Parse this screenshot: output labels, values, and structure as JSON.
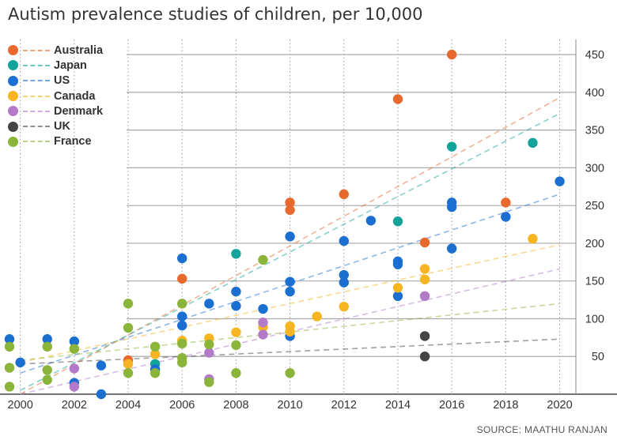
{
  "title": "Autism prevalence studies of children, per 10,000",
  "source": "SOURCE: MAATHU RANJAN",
  "chart_data": {
    "type": "scatter",
    "title": "Autism prevalence studies of children, per 10,000",
    "xlabel": "",
    "ylabel": "",
    "xlim": [
      1999.6,
      2020.6
    ],
    "ylim": [
      0,
      470
    ],
    "x_ticks": [
      2000,
      2002,
      2004,
      2006,
      2008,
      2010,
      2012,
      2014,
      2016,
      2018,
      2020
    ],
    "y_ticks": [
      50,
      100,
      150,
      200,
      250,
      300,
      350,
      400,
      450
    ],
    "grid": "horizontal",
    "legend": "top-left",
    "series": [
      {
        "name": "Australia",
        "color": "#e8692d",
        "points": [
          [
            2004,
            45
          ],
          [
            2006,
            153
          ],
          [
            2010,
            244
          ],
          [
            2010,
            254
          ],
          [
            2012,
            265
          ],
          [
            2014,
            391
          ],
          [
            2015,
            201
          ],
          [
            2016,
            450
          ],
          [
            2018,
            254
          ]
        ],
        "trend": [
          [
            2000,
            0
          ],
          [
            2020,
            393
          ]
        ]
      },
      {
        "name": "Japan",
        "color": "#12a39a",
        "points": [
          [
            2005,
            40
          ],
          [
            2008,
            186
          ],
          [
            2014,
            229
          ],
          [
            2016,
            328
          ],
          [
            2019,
            333
          ]
        ],
        "trend": [
          [
            2000,
            5
          ],
          [
            2020,
            372
          ]
        ]
      },
      {
        "name": "US",
        "color": "#1a6fd0",
        "points": [
          [
            1999.6,
            73
          ],
          [
            2000,
            42
          ],
          [
            2001,
            73
          ],
          [
            2002,
            70
          ],
          [
            2002,
            15
          ],
          [
            2003,
            0
          ],
          [
            2003,
            38
          ],
          [
            2005,
            33
          ],
          [
            2006,
            91
          ],
          [
            2006,
            103
          ],
          [
            2006,
            180
          ],
          [
            2007,
            120
          ],
          [
            2008,
            136
          ],
          [
            2008,
            117
          ],
          [
            2009,
            113
          ],
          [
            2010,
            77
          ],
          [
            2010,
            136
          ],
          [
            2010,
            149
          ],
          [
            2010,
            209
          ],
          [
            2012,
            148
          ],
          [
            2012,
            158
          ],
          [
            2012,
            203
          ],
          [
            2013,
            230
          ],
          [
            2014,
            130
          ],
          [
            2014,
            172
          ],
          [
            2014,
            176
          ],
          [
            2016,
            193
          ],
          [
            2016,
            248
          ],
          [
            2016,
            254
          ],
          [
            2018,
            235
          ],
          [
            2020,
            282
          ]
        ],
        "trend": [
          [
            2000,
            28
          ],
          [
            2020,
            265
          ]
        ]
      },
      {
        "name": "Canada",
        "color": "#f7b522",
        "points": [
          [
            2004,
            40
          ],
          [
            2005,
            53
          ],
          [
            2006,
            71
          ],
          [
            2007,
            74
          ],
          [
            2008,
            82
          ],
          [
            2009,
            89
          ],
          [
            2010,
            90
          ],
          [
            2010,
            83
          ],
          [
            2011,
            103
          ],
          [
            2012,
            116
          ],
          [
            2014,
            141
          ],
          [
            2015,
            152
          ],
          [
            2015,
            166
          ],
          [
            2019,
            206
          ]
        ],
        "trend": [
          [
            2000,
            42
          ],
          [
            2020,
            198
          ]
        ]
      },
      {
        "name": "Denmark",
        "color": "#b27ac8",
        "points": [
          [
            2002,
            10
          ],
          [
            2002,
            34
          ],
          [
            2007,
            20
          ],
          [
            2007,
            55
          ],
          [
            2009,
            79
          ],
          [
            2009,
            95
          ],
          [
            2015,
            130
          ]
        ],
        "trend": [
          [
            2000,
            0
          ],
          [
            2020,
            166
          ]
        ]
      },
      {
        "name": "UK",
        "color": "#444444",
        "points": [
          [
            2015,
            77
          ],
          [
            2015,
            50
          ]
        ],
        "trend": [
          [
            2000,
            40
          ],
          [
            2020,
            73
          ]
        ]
      },
      {
        "name": "France",
        "color": "#8bb43a",
        "points": [
          [
            1999.6,
            10
          ],
          [
            1999.6,
            35
          ],
          [
            1999.6,
            63
          ],
          [
            2001,
            63
          ],
          [
            2001,
            32
          ],
          [
            2001,
            19
          ],
          [
            2002,
            60
          ],
          [
            2004,
            28
          ],
          [
            2004,
            88
          ],
          [
            2004,
            120
          ],
          [
            2005,
            28
          ],
          [
            2005,
            63
          ],
          [
            2006,
            42
          ],
          [
            2006,
            48
          ],
          [
            2006,
            67
          ],
          [
            2006,
            120
          ],
          [
            2007,
            16
          ],
          [
            2007,
            66
          ],
          [
            2008,
            28
          ],
          [
            2008,
            65
          ],
          [
            2009,
            178
          ],
          [
            2010,
            28
          ]
        ],
        "trend": [
          [
            2000,
            45
          ],
          [
            2020,
            120
          ]
        ]
      }
    ]
  }
}
